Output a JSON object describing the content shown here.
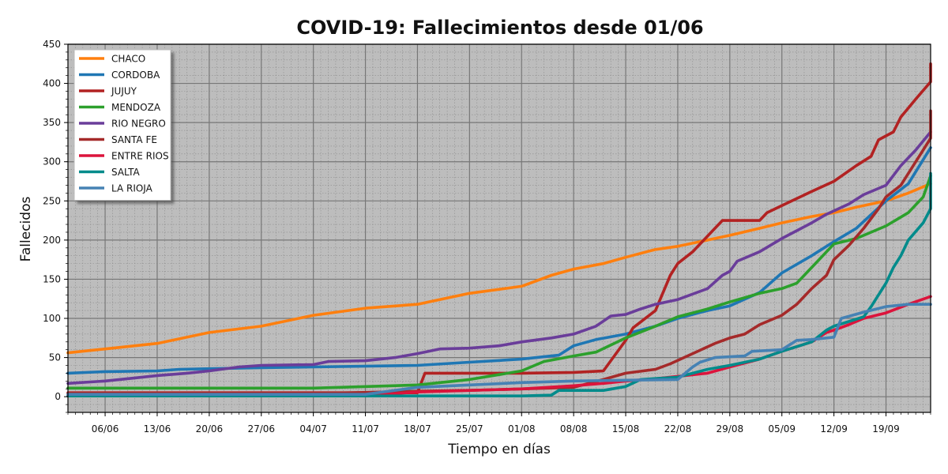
{
  "chart_data": {
    "type": "line",
    "title": "COVID-19: Fallecimientos desde 01/06",
    "xlabel": "Tiempo en días",
    "ylabel": "Fallecidos",
    "xlim": [
      1,
      117
    ],
    "ylim": [
      -20,
      450
    ],
    "y_ticks": [
      0,
      50,
      100,
      150,
      200,
      250,
      300,
      350,
      400,
      450
    ],
    "x_ticks": [
      {
        "day": 6,
        "label": "06/06"
      },
      {
        "day": 13,
        "label": "13/06"
      },
      {
        "day": 20,
        "label": "20/06"
      },
      {
        "day": 27,
        "label": "27/06"
      },
      {
        "day": 34,
        "label": "04/07"
      },
      {
        "day": 41,
        "label": "11/07"
      },
      {
        "day": 48,
        "label": "18/07"
      },
      {
        "day": 55,
        "label": "25/07"
      },
      {
        "day": 62,
        "label": "01/08"
      },
      {
        "day": 69,
        "label": "08/08"
      },
      {
        "day": 76,
        "label": "15/08"
      },
      {
        "day": 83,
        "label": "22/08"
      },
      {
        "day": 90,
        "label": "29/08"
      },
      {
        "day": 97,
        "label": "05/09"
      },
      {
        "day": 104,
        "label": "12/09"
      },
      {
        "day": 111,
        "label": "19/09"
      }
    ],
    "grid": true,
    "legend_position": "top-left",
    "background": "#bdbdbd",
    "series": [
      {
        "name": "CHACO",
        "color": "#ff7f0e",
        "points": [
          [
            1,
            56
          ],
          [
            6,
            61
          ],
          [
            13,
            68
          ],
          [
            20,
            82
          ],
          [
            27,
            90
          ],
          [
            34,
            104
          ],
          [
            41,
            113
          ],
          [
            48,
            118
          ],
          [
            55,
            132
          ],
          [
            62,
            141
          ],
          [
            66,
            155
          ],
          [
            69,
            163
          ],
          [
            73,
            170
          ],
          [
            76,
            178
          ],
          [
            80,
            188
          ],
          [
            83,
            192
          ],
          [
            90,
            206
          ],
          [
            94,
            215
          ],
          [
            97,
            222
          ],
          [
            101,
            230
          ],
          [
            104,
            235
          ],
          [
            107,
            242
          ],
          [
            111,
            250
          ],
          [
            114,
            260
          ],
          [
            117,
            272
          ]
        ]
      },
      {
        "name": "CORDOBA",
        "color": "#1f77b4",
        "points": [
          [
            1,
            30
          ],
          [
            6,
            32
          ],
          [
            13,
            33
          ],
          [
            16,
            35
          ],
          [
            27,
            37
          ],
          [
            34,
            38
          ],
          [
            48,
            40
          ],
          [
            55,
            44
          ],
          [
            62,
            48
          ],
          [
            67,
            53
          ],
          [
            69,
            65
          ],
          [
            72,
            73
          ],
          [
            76,
            80
          ],
          [
            80,
            90
          ],
          [
            83,
            100
          ],
          [
            87,
            110
          ],
          [
            90,
            116
          ],
          [
            94,
            133
          ],
          [
            97,
            158
          ],
          [
            101,
            180
          ],
          [
            104,
            198
          ],
          [
            107,
            215
          ],
          [
            111,
            250
          ],
          [
            114,
            272
          ],
          [
            117,
            318
          ]
        ]
      },
      {
        "name": "JUJUY",
        "color": "#b22222",
        "points": [
          [
            1,
            5
          ],
          [
            48,
            5
          ],
          [
            49,
            30
          ],
          [
            62,
            30
          ],
          [
            69,
            31
          ],
          [
            73,
            33
          ],
          [
            76,
            72
          ],
          [
            77,
            88
          ],
          [
            80,
            110
          ],
          [
            82,
            155
          ],
          [
            83,
            170
          ],
          [
            85,
            185
          ],
          [
            87,
            205
          ],
          [
            89,
            225
          ],
          [
            94,
            225
          ],
          [
            95,
            235
          ],
          [
            97,
            244
          ],
          [
            101,
            262
          ],
          [
            104,
            275
          ],
          [
            107,
            295
          ],
          [
            109,
            307
          ],
          [
            110,
            328
          ],
          [
            112,
            338
          ],
          [
            113,
            357
          ],
          [
            115,
            380
          ],
          [
            117,
            402
          ],
          [
            118,
            425
          ]
        ]
      },
      {
        "name": "MENDOZA",
        "color": "#2ca02c",
        "points": [
          [
            1,
            11
          ],
          [
            34,
            11
          ],
          [
            48,
            15
          ],
          [
            55,
            22
          ],
          [
            62,
            33
          ],
          [
            65,
            45
          ],
          [
            69,
            52
          ],
          [
            72,
            57
          ],
          [
            76,
            75
          ],
          [
            80,
            90
          ],
          [
            83,
            102
          ],
          [
            87,
            112
          ],
          [
            90,
            121
          ],
          [
            94,
            132
          ],
          [
            97,
            138
          ],
          [
            99,
            145
          ],
          [
            101,
            165
          ],
          [
            104,
            195
          ],
          [
            107,
            202
          ],
          [
            111,
            218
          ],
          [
            114,
            235
          ],
          [
            116,
            255
          ],
          [
            118,
            282
          ]
        ]
      },
      {
        "name": "RIO NEGRO",
        "color": "#6a3d9a",
        "points": [
          [
            1,
            17
          ],
          [
            6,
            20
          ],
          [
            10,
            24
          ],
          [
            13,
            27
          ],
          [
            17,
            30
          ],
          [
            20,
            33
          ],
          [
            24,
            38
          ],
          [
            27,
            40
          ],
          [
            34,
            41
          ],
          [
            36,
            45
          ],
          [
            41,
            46
          ],
          [
            45,
            50
          ],
          [
            48,
            55
          ],
          [
            51,
            61
          ],
          [
            55,
            62
          ],
          [
            59,
            65
          ],
          [
            62,
            70
          ],
          [
            66,
            75
          ],
          [
            69,
            80
          ],
          [
            72,
            90
          ],
          [
            74,
            103
          ],
          [
            76,
            105
          ],
          [
            78,
            112
          ],
          [
            80,
            118
          ],
          [
            83,
            124
          ],
          [
            87,
            138
          ],
          [
            89,
            155
          ],
          [
            90,
            160
          ],
          [
            91,
            173
          ],
          [
            94,
            185
          ],
          [
            97,
            202
          ],
          [
            99,
            212
          ],
          [
            101,
            222
          ],
          [
            103,
            233
          ],
          [
            106,
            246
          ],
          [
            108,
            258
          ],
          [
            111,
            270
          ],
          [
            113,
            295
          ],
          [
            115,
            315
          ],
          [
            118,
            338
          ]
        ]
      },
      {
        "name": "SANTA FE",
        "color": "#a52a2a",
        "points": [
          [
            1,
            4
          ],
          [
            34,
            4
          ],
          [
            48,
            7
          ],
          [
            55,
            8
          ],
          [
            62,
            10
          ],
          [
            69,
            12
          ],
          [
            73,
            22
          ],
          [
            76,
            30
          ],
          [
            80,
            35
          ],
          [
            82,
            42
          ],
          [
            85,
            55
          ],
          [
            88,
            68
          ],
          [
            90,
            75
          ],
          [
            92,
            80
          ],
          [
            94,
            92
          ],
          [
            97,
            104
          ],
          [
            99,
            118
          ],
          [
            101,
            138
          ],
          [
            103,
            155
          ],
          [
            104,
            175
          ],
          [
            106,
            193
          ],
          [
            108,
            215
          ],
          [
            110,
            240
          ],
          [
            111,
            255
          ],
          [
            113,
            270
          ],
          [
            115,
            300
          ],
          [
            117,
            330
          ],
          [
            118,
            365
          ]
        ]
      },
      {
        "name": "ENTRE RIOS",
        "color": "#dc143c",
        "points": [
          [
            1,
            1
          ],
          [
            41,
            1
          ],
          [
            48,
            6
          ],
          [
            55,
            8
          ],
          [
            62,
            10
          ],
          [
            69,
            14
          ],
          [
            73,
            17
          ],
          [
            76,
            20
          ],
          [
            80,
            23
          ],
          [
            83,
            26
          ],
          [
            87,
            30
          ],
          [
            90,
            38
          ],
          [
            94,
            48
          ],
          [
            97,
            58
          ],
          [
            101,
            70
          ],
          [
            103,
            82
          ],
          [
            104,
            85
          ],
          [
            106,
            92
          ],
          [
            108,
            100
          ],
          [
            111,
            107
          ],
          [
            114,
            118
          ],
          [
            117,
            128
          ]
        ]
      },
      {
        "name": "SALTA",
        "color": "#008b8b",
        "points": [
          [
            1,
            1
          ],
          [
            62,
            1
          ],
          [
            66,
            2
          ],
          [
            67,
            8
          ],
          [
            73,
            8
          ],
          [
            76,
            13
          ],
          [
            78,
            22
          ],
          [
            83,
            25
          ],
          [
            87,
            35
          ],
          [
            90,
            40
          ],
          [
            94,
            48
          ],
          [
            97,
            58
          ],
          [
            101,
            70
          ],
          [
            103,
            85
          ],
          [
            104,
            90
          ],
          [
            106,
            96
          ],
          [
            108,
            102
          ],
          [
            109,
            115
          ],
          [
            111,
            145
          ],
          [
            112,
            165
          ],
          [
            113,
            180
          ],
          [
            114,
            200
          ],
          [
            116,
            222
          ],
          [
            117,
            240
          ],
          [
            118,
            285
          ]
        ]
      },
      {
        "name": "LA RIOJA",
        "color": "#4682b4",
        "points": [
          [
            1,
            3
          ],
          [
            41,
            3
          ],
          [
            48,
            12
          ],
          [
            55,
            15
          ],
          [
            62,
            18
          ],
          [
            69,
            20
          ],
          [
            76,
            21
          ],
          [
            83,
            22
          ],
          [
            85,
            38
          ],
          [
            86,
            44
          ],
          [
            88,
            50
          ],
          [
            92,
            52
          ],
          [
            93,
            58
          ],
          [
            97,
            60
          ],
          [
            99,
            72
          ],
          [
            101,
            73
          ],
          [
            104,
            76
          ],
          [
            105,
            100
          ],
          [
            108,
            108
          ],
          [
            111,
            115
          ],
          [
            114,
            118
          ],
          [
            118,
            118
          ]
        ]
      }
    ]
  }
}
